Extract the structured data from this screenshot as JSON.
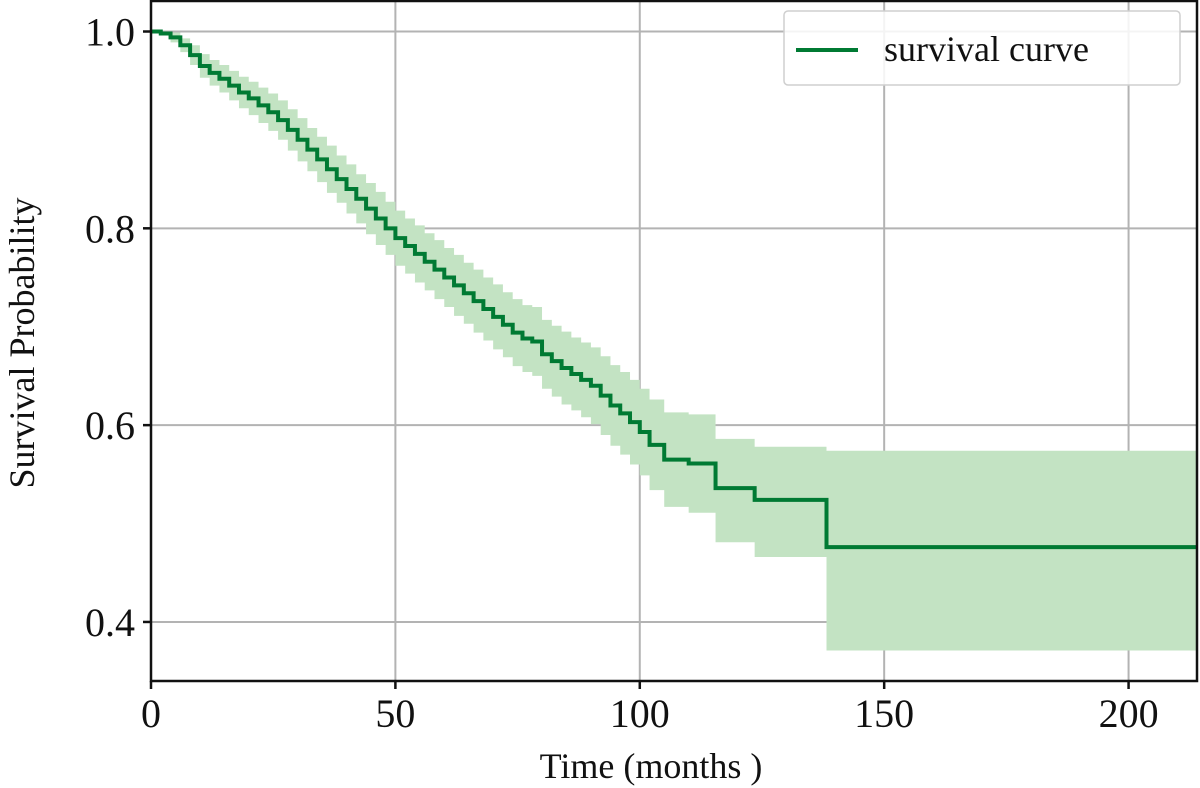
{
  "chart_data": {
    "type": "line",
    "subtype": "kaplan-meier step curve with confidence band",
    "xlabel": "Time (months )",
    "ylabel": "Survival Probability",
    "xlim": [
      0,
      214
    ],
    "ylim": [
      0.34,
      1.031
    ],
    "x_ticks": [
      0,
      50,
      100,
      150,
      200
    ],
    "x_tick_labels": [
      "0",
      "50",
      "100",
      "150",
      "200"
    ],
    "y_ticks": [
      0.4,
      0.6,
      0.8,
      1.0
    ],
    "y_tick_labels": [
      "0.4",
      "0.6",
      "0.8",
      "1.0"
    ],
    "grid": true,
    "legend_position": "top-right",
    "colors": {
      "line": "#007a33",
      "band": "#c3e3c3",
      "grid": "#b3b3b3"
    },
    "series": [
      {
        "name": "survival curve",
        "x_end": 214,
        "times": [
          0,
          2,
          4,
          6,
          8,
          10,
          12,
          14,
          16,
          18,
          20,
          22,
          24,
          26,
          28,
          30,
          32,
          34,
          36,
          38,
          40,
          42,
          44,
          46,
          48,
          50,
          52,
          54,
          56,
          58,
          60,
          62,
          64,
          66,
          68,
          70,
          72,
          74,
          76,
          78,
          80,
          82,
          84,
          86,
          88,
          90,
          92,
          94,
          96,
          98,
          100,
          102,
          105,
          110,
          115.5,
          123.5,
          138.2
        ],
        "survival": [
          1.0,
          0.998,
          0.994,
          0.986,
          0.976,
          0.965,
          0.958,
          0.952,
          0.945,
          0.938,
          0.932,
          0.925,
          0.918,
          0.91,
          0.9,
          0.89,
          0.88,
          0.87,
          0.86,
          0.85,
          0.84,
          0.83,
          0.82,
          0.81,
          0.8,
          0.79,
          0.782,
          0.774,
          0.766,
          0.758,
          0.75,
          0.742,
          0.734,
          0.726,
          0.718,
          0.71,
          0.702,
          0.694,
          0.688,
          0.685,
          0.672,
          0.665,
          0.658,
          0.652,
          0.646,
          0.64,
          0.63,
          0.62,
          0.612,
          0.603,
          0.593,
          0.58,
          0.565,
          0.561,
          0.536,
          0.524,
          0.476
        ],
        "ci_lower": [
          1.0,
          0.996,
          0.989,
          0.979,
          0.966,
          0.953,
          0.945,
          0.938,
          0.93,
          0.922,
          0.915,
          0.907,
          0.899,
          0.89,
          0.879,
          0.868,
          0.858,
          0.847,
          0.836,
          0.826,
          0.815,
          0.805,
          0.794,
          0.783,
          0.773,
          0.762,
          0.754,
          0.745,
          0.737,
          0.728,
          0.72,
          0.711,
          0.703,
          0.694,
          0.686,
          0.677,
          0.669,
          0.66,
          0.654,
          0.65,
          0.637,
          0.629,
          0.621,
          0.615,
          0.608,
          0.601,
          0.59,
          0.579,
          0.57,
          0.56,
          0.549,
          0.534,
          0.517,
          0.511,
          0.481,
          0.466,
          0.371
        ],
        "ci_upper": [
          1.0,
          1.0,
          0.999,
          0.993,
          0.986,
          0.977,
          0.971,
          0.966,
          0.96,
          0.954,
          0.949,
          0.943,
          0.937,
          0.93,
          0.921,
          0.912,
          0.902,
          0.893,
          0.884,
          0.874,
          0.865,
          0.855,
          0.846,
          0.837,
          0.827,
          0.818,
          0.81,
          0.803,
          0.795,
          0.788,
          0.78,
          0.773,
          0.765,
          0.758,
          0.75,
          0.743,
          0.735,
          0.728,
          0.722,
          0.72,
          0.707,
          0.701,
          0.695,
          0.689,
          0.684,
          0.679,
          0.67,
          0.661,
          0.654,
          0.646,
          0.637,
          0.626,
          0.613,
          0.611,
          0.586,
          0.578,
          0.574
        ]
      }
    ]
  }
}
